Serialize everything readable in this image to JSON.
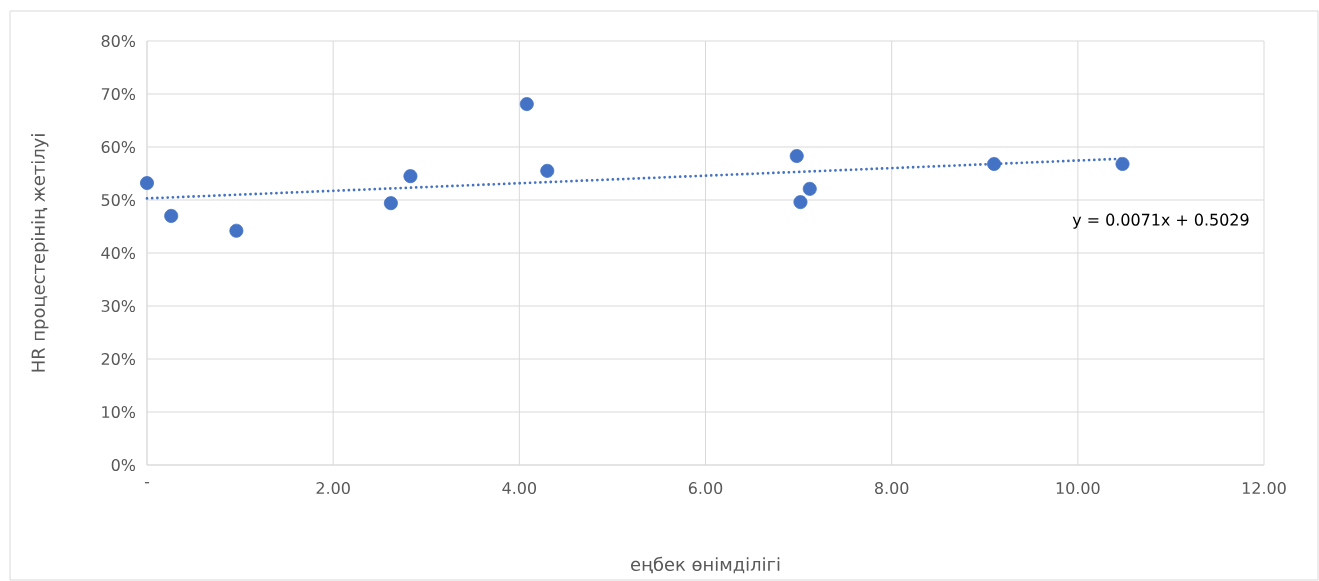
{
  "chart_data": {
    "type": "scatter",
    "xlabel": "еңбек өнімділігі",
    "ylabel": "HR процестерінің жетілуі",
    "xlim": [
      0,
      12
    ],
    "ylim": [
      0,
      80
    ],
    "xticks": [
      {
        "value": 0,
        "label": "-"
      },
      {
        "value": 2,
        "label": "2.00"
      },
      {
        "value": 4,
        "label": "4.00"
      },
      {
        "value": 6,
        "label": "6.00"
      },
      {
        "value": 8,
        "label": "8.00"
      },
      {
        "value": 10,
        "label": "10.00"
      },
      {
        "value": 12,
        "label": "12.00"
      }
    ],
    "yticks": [
      {
        "value": 0,
        "label": "0%"
      },
      {
        "value": 10,
        "label": "10%"
      },
      {
        "value": 20,
        "label": "20%"
      },
      {
        "value": 30,
        "label": "30%"
      },
      {
        "value": 40,
        "label": "40%"
      },
      {
        "value": 50,
        "label": "50%"
      },
      {
        "value": 60,
        "label": "60%"
      },
      {
        "value": 70,
        "label": "70%"
      },
      {
        "value": 80,
        "label": "80%"
      }
    ],
    "grid": true,
    "marker": "circle",
    "series": [
      {
        "color": "#4472c4",
        "x": [
          0,
          0.26,
          0.96,
          2.62,
          2.83,
          4.08,
          4.3,
          6.98,
          7.02,
          7.12,
          9.1,
          10.48
        ],
        "values": [
          53.2,
          47.0,
          44.2,
          49.4,
          54.5,
          68.1,
          55.5,
          58.3,
          49.6,
          52.1,
          56.8,
          56.8
        ]
      },
      {
        "type": "line",
        "color": "#4472c4",
        "line_style": "dotted",
        "marker": "none",
        "x": [
          0,
          10.5
        ],
        "values": [
          50.3,
          57.8
        ]
      }
    ],
    "annotations": [
      "y = 0.0071x + 0.5029"
    ]
  }
}
